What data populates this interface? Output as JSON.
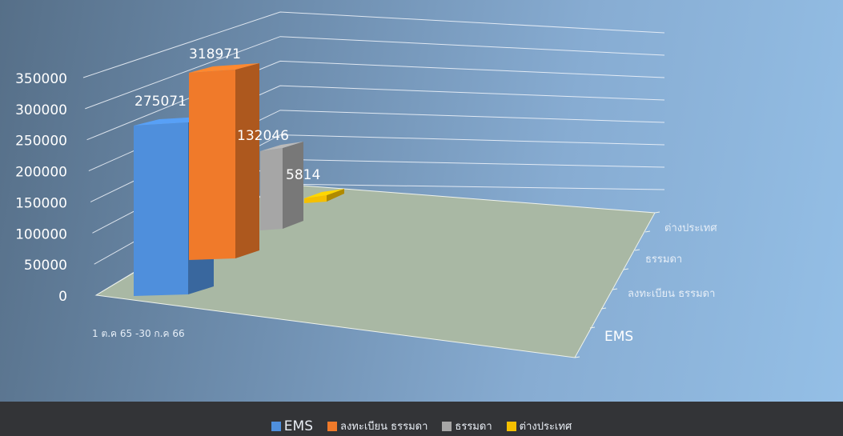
{
  "chart_data": {
    "type": "bar",
    "categories": [
      "1 ต.ค 65 -30 ก.ค 66"
    ],
    "series": [
      {
        "name": "EMS",
        "values": [
          275071
        ],
        "color": "#4f8fdc"
      },
      {
        "name": "ลงทะเบียน ธรรมดา",
        "values": [
          318971
        ],
        "color": "#f07a2a"
      },
      {
        "name": "ธรรมดา",
        "values": [
          132046
        ],
        "color": "#a6a6a6"
      },
      {
        "name": "ต่างประเทศ",
        "values": [
          5814
        ],
        "color": "#f5c000"
      }
    ],
    "y_ticks": [
      "350000",
      "300000",
      "250000",
      "200000",
      "150000",
      "100000",
      "50000",
      "0"
    ],
    "depth_labels": [
      "ต่างประเทศ",
      "ธรรมดา",
      "ลงทะเบียน ธรรมดา",
      "EMS"
    ],
    "data_labels": [
      "275071",
      "318971",
      "132046",
      "5814"
    ],
    "ylim": [
      0,
      350000
    ],
    "grid": true,
    "legend_position": "bottom",
    "floor_color": "#a9b8a4"
  }
}
